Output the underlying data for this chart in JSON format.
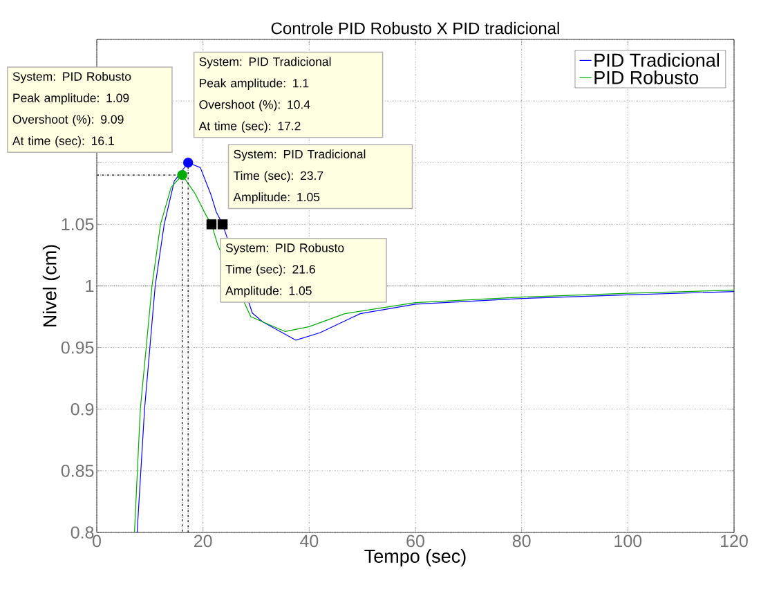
{
  "chart_data": {
    "type": "line",
    "title": "Controle PID Robusto X PID tradicional",
    "xlabel": "Tempo (sec)",
    "ylabel": "Nivel (cm)",
    "xlim": [
      0,
      120
    ],
    "xticks": [
      0,
      20,
      40,
      60,
      80,
      100,
      120
    ],
    "ylim": [
      0.8,
      1.2
    ],
    "yticks": [
      0.8,
      0.85,
      0.9,
      0.95,
      1,
      1.05,
      {
        "value": 1.1,
        "label": null
      },
      {
        "value": 1.15,
        "label": null
      },
      {
        "value": 1.2,
        "label": null
      }
    ],
    "grid": true,
    "legend": "top right",
    "marker": "none",
    "line_style": "solid",
    "series": [
      {
        "name": "PID Tradicional",
        "color": "#0000ff",
        "x": [
          7.6,
          9.0,
          11.0,
          12.7,
          14.6,
          17.2,
          19.5,
          21.5,
          22.5,
          23.7,
          29.3,
          31.2,
          37.5,
          42,
          49.6,
          60,
          80,
          100,
          120
        ],
        "values": [
          0.8,
          0.9,
          1.0,
          1.05,
          1.085,
          1.1,
          1.096,
          1.074,
          1.06,
          1.05,
          0.978,
          0.971,
          0.956,
          0.962,
          0.9775,
          0.9852,
          0.9898,
          0.9928,
          0.9954
        ]
      },
      {
        "name": "PID Robusto",
        "color": "#00aa00",
        "x": [
          7.1,
          8.2,
          10.4,
          12.0,
          14.0,
          16.1,
          18.5,
          20.5,
          21.6,
          22.8,
          29,
          35.5,
          40,
          46.7,
          60,
          80,
          100,
          120
        ],
        "values": [
          0.8,
          0.9,
          1.0,
          1.05,
          1.08,
          1.09,
          1.075,
          1.058,
          1.05,
          1.033,
          0.975,
          0.963,
          0.967,
          0.9775,
          0.9865,
          0.991,
          0.994,
          0.9966
        ]
      },
      {
        "type": "line",
        "color": "#000000",
        "line_style": "dashed",
        "x": [
          0,
          16.1,
          16.1
        ],
        "values": [
          1.09,
          1.09,
          0.8
        ]
      },
      {
        "type": "line",
        "color": "#000000",
        "line_style": "dashed",
        "x": [
          17.2,
          17.2
        ],
        "values": [
          0.8,
          1.1
        ]
      },
      {
        "type": "scatter",
        "color": "#0000ff",
        "marker": "circle",
        "x": [
          17.2
        ],
        "values": [
          1.1
        ]
      },
      {
        "type": "scatter",
        "color": "#00aa00",
        "marker": "circle",
        "x": [
          16.1
        ],
        "values": [
          1.09
        ]
      },
      {
        "type": "scatter",
        "color": "#000000",
        "marker": "square",
        "x": [
          23.7,
          21.6
        ],
        "values": [
          1.05,
          1.05
        ]
      }
    ],
    "ref_lines": [
      {
        "axis": "y",
        "value": 1,
        "color": "#000000",
        "line_style": "dotted"
      }
    ],
    "annotations": [
      "System: PID Robusto",
      "Peak amplitude: 1.09",
      "Overshoot (%): 9.09",
      "At time (sec): 16.1",
      "System: PID Tradicional",
      "Peak amplitude: 1.1",
      "Overshoot (%): 10.4",
      "At time (sec): 17.2",
      "System: PID Tradicional",
      "Time (sec): 23.7",
      "Amplitude: 1.05",
      "System: PID Robusto",
      "Time (sec): 21.6",
      "Amplitude: 1.05"
    ]
  }
}
